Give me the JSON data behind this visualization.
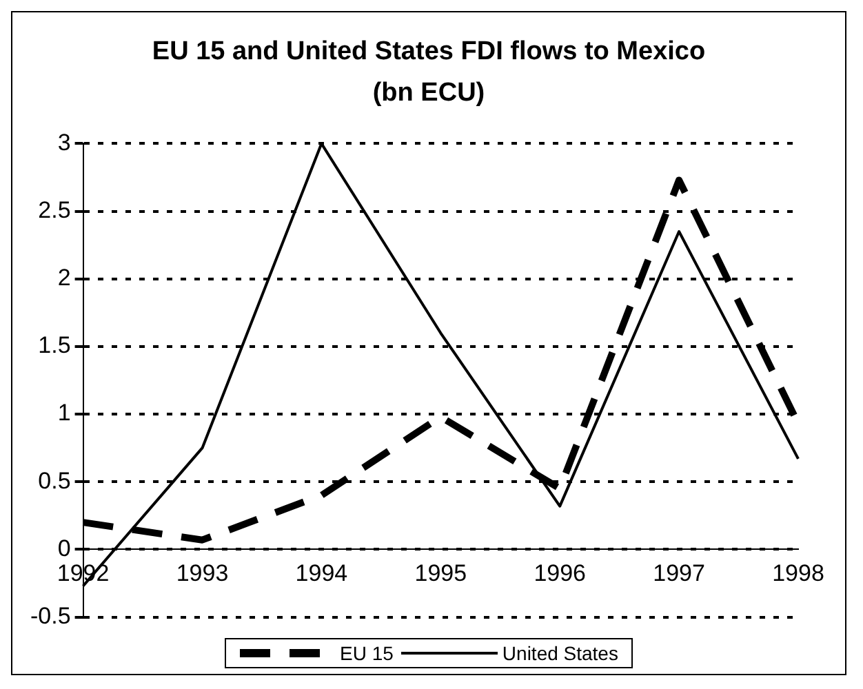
{
  "chart_data": {
    "type": "line",
    "title": "EU 15 and United States FDI flows to Mexico (bn ECU)",
    "categories": [
      "1992",
      "1993",
      "1994",
      "1995",
      "1996",
      "1997",
      "1998"
    ],
    "series": [
      {
        "name": "EU 15",
        "color": "#000000",
        "line_style": "dashed",
        "values": [
          0.2,
          0.07,
          0.4,
          0.98,
          0.45,
          2.73,
          0.93
        ]
      },
      {
        "name": "United States",
        "color": "#000000",
        "line_style": "solid",
        "values": [
          -0.27,
          0.75,
          3.0,
          1.6,
          0.32,
          2.35,
          0.67
        ]
      }
    ],
    "ylim": [
      -0.5,
      3
    ],
    "yticks": [
      -0.5,
      0,
      0.5,
      1,
      1.5,
      2,
      2.5,
      3
    ],
    "grid": "y",
    "legend": "bottom",
    "marker": "none"
  }
}
